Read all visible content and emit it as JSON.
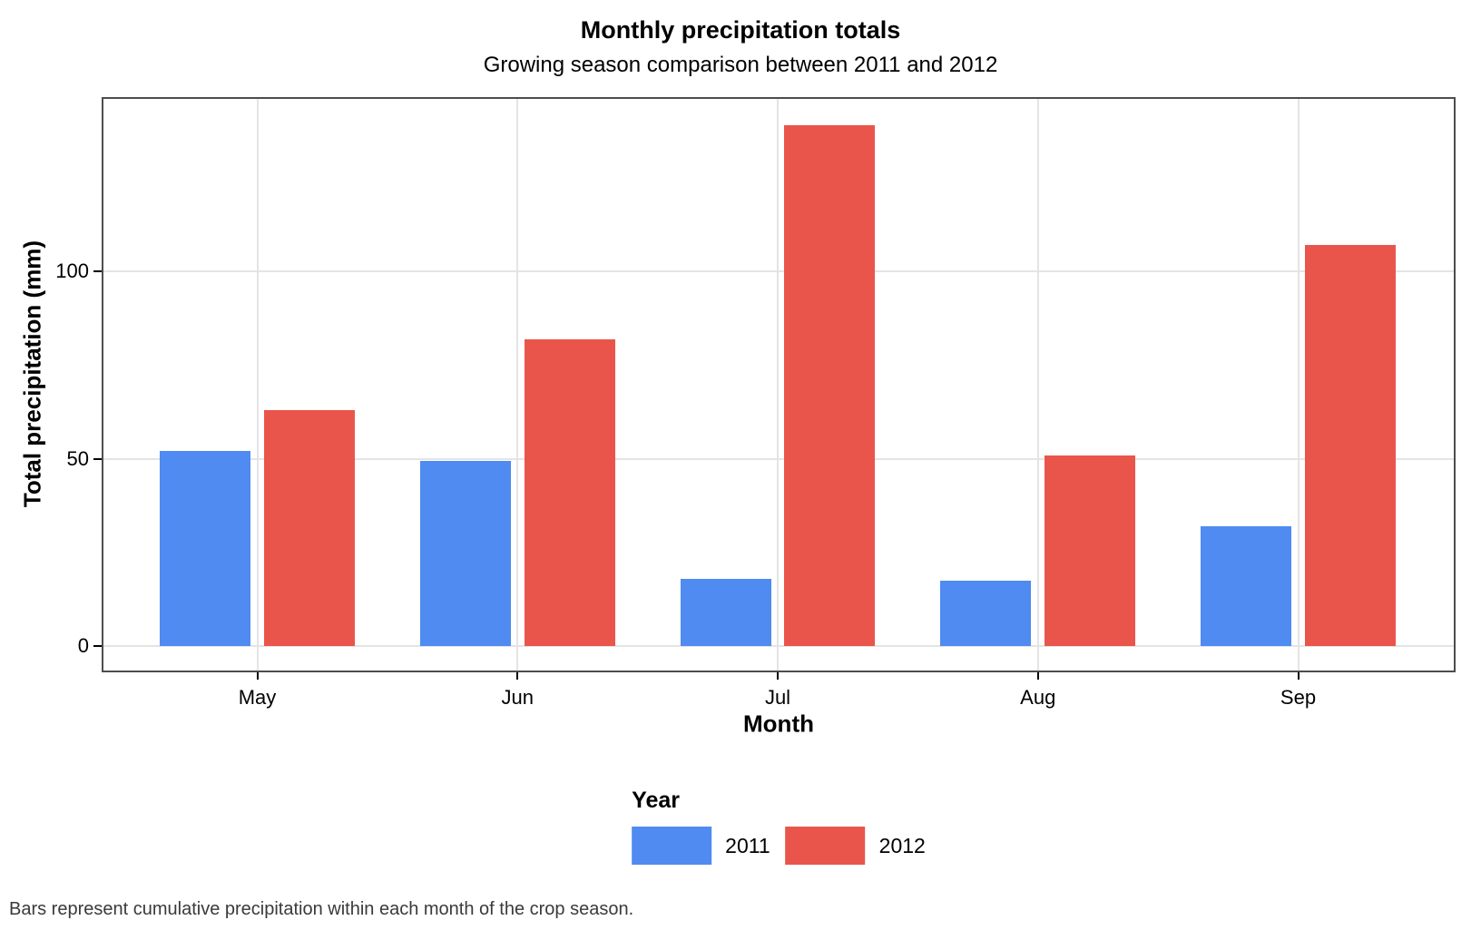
{
  "title": "Monthly precipitation totals",
  "subtitle": "Growing season comparison between 2011 and 2012",
  "caption": "Bars represent cumulative precipitation within each month of the crop season.",
  "x_axis": {
    "title": "Month",
    "tick_labels": [
      "May",
      "Jun",
      "Jul",
      "Aug",
      "Sep"
    ]
  },
  "y_axis": {
    "title": "Total precipitation (mm)",
    "tick_labels": [
      "0",
      "50",
      "100"
    ],
    "tick_values": [
      0,
      50,
      100
    ]
  },
  "legend": {
    "title": "Year",
    "items": [
      {
        "label": "2011",
        "color": "#4F8BF0"
      },
      {
        "label": "2012",
        "color": "#E9554B"
      }
    ]
  },
  "chart_data": {
    "type": "bar",
    "categories": [
      "May",
      "Jun",
      "Jul",
      "Aug",
      "Sep"
    ],
    "series": [
      {
        "name": "2011",
        "color": "#4F8BF0",
        "values": [
          52,
          49.5,
          18,
          17.5,
          32
        ]
      },
      {
        "name": "2012",
        "color": "#E9554B",
        "values": [
          63,
          82,
          139,
          51,
          107
        ]
      }
    ],
    "title": "Monthly precipitation totals",
    "subtitle": "Growing season comparison between 2011 and 2012",
    "xlabel": "Month",
    "ylabel": "Total precipitation (mm)",
    "ylim": [
      -7,
      146.6
    ],
    "yticks": [
      0,
      50,
      100
    ],
    "grid": true,
    "legend_position": "bottom",
    "legend_title": "Year"
  },
  "colors": {
    "bar_2011": "#4F8BF0",
    "bar_2012": "#E9554B",
    "gridline": "#E4E4E4",
    "panel_border": "#4D4D4D",
    "caption_text": "#3A3A3A"
  }
}
